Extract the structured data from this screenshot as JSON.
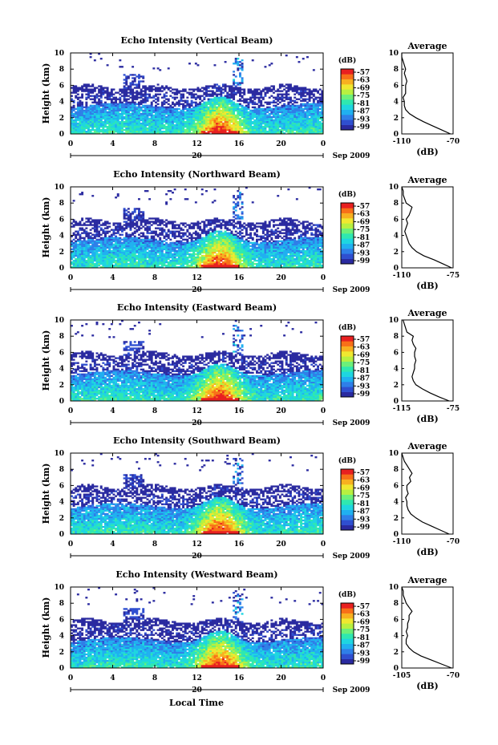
{
  "page": {
    "date_label": "Sep 2009",
    "xlabel": "Local Time"
  },
  "colormap": [
    "#2a2aa0",
    "#2f4fd0",
    "#2f7fe8",
    "#20b0f0",
    "#1ed6e0",
    "#2fe8b0",
    "#6cf07a",
    "#b8f040",
    "#f0e830",
    "#f8b020",
    "#f87018",
    "#e82020"
  ],
  "chart_data": [
    {
      "type": "heatmap",
      "title": "Echo Intensity (Vertical Beam)",
      "ylabel": "Height (km)",
      "x_ticks": [
        "0",
        "4",
        "8",
        "12",
        "16",
        "20",
        "0"
      ],
      "y_ticks": [
        "0",
        "2",
        "4",
        "6",
        "8",
        "10"
      ],
      "xlim": [
        0,
        24
      ],
      "ylim": [
        0,
        10
      ],
      "day_label": "20",
      "date_label": "Sep 2009",
      "colorbar": {
        "unit": "(dB)",
        "ticks": [
          "-57",
          "-63",
          "-69",
          "-75",
          "-81",
          "-87",
          "-93",
          "-99"
        ]
      },
      "profile": {
        "title": "Average",
        "xlabel": "(dB)",
        "x_ticks": [
          "-110",
          "-70"
        ],
        "xlim": [
          -110,
          -70
        ],
        "y_ticks": [
          "0",
          "2",
          "4",
          "6",
          "8",
          "10"
        ],
        "height": [
          0,
          0.5,
          1,
          1.5,
          2,
          2.5,
          3,
          3.5,
          4,
          4.5,
          5,
          5.5,
          6,
          6.5,
          7,
          7.5,
          8,
          8.5,
          9,
          9.5,
          10
        ],
        "values": [
          -72,
          -79,
          -86,
          -93,
          -99,
          -104,
          -107,
          -108,
          -108,
          -109,
          -107,
          -107,
          -107,
          -106,
          -107,
          -108,
          -107,
          -108,
          -109,
          -110,
          -110
        ]
      }
    },
    {
      "type": "heatmap",
      "title": "Echo Intensity (Northward Beam)",
      "ylabel": "Height (km)",
      "x_ticks": [
        "0",
        "4",
        "8",
        "12",
        "16",
        "20",
        "0"
      ],
      "y_ticks": [
        "0",
        "2",
        "4",
        "6",
        "8",
        "10"
      ],
      "xlim": [
        0,
        24
      ],
      "ylim": [
        0,
        10
      ],
      "day_label": "20",
      "date_label": "Sep 2009",
      "colorbar": {
        "unit": "(dB)",
        "ticks": [
          "-57",
          "-63",
          "-69",
          "-75",
          "-81",
          "-87",
          "-93",
          "-99"
        ]
      },
      "profile": {
        "title": "Average",
        "xlabel": "(dB)",
        "x_ticks": [
          "-110",
          "-75"
        ],
        "xlim": [
          -110,
          -75
        ],
        "y_ticks": [
          "0",
          "2",
          "4",
          "6",
          "8",
          "10"
        ],
        "height": [
          0,
          0.5,
          1,
          1.5,
          2,
          2.5,
          3,
          3.5,
          4,
          4.5,
          5,
          5.5,
          6,
          6.5,
          7,
          7.5,
          8,
          8.5,
          9,
          9.5,
          10
        ],
        "values": [
          -76,
          -82,
          -88,
          -95,
          -100,
          -103,
          -105,
          -106,
          -107,
          -108,
          -107,
          -106,
          -107,
          -105,
          -104,
          -103,
          -107,
          -108,
          -109,
          -109,
          -110
        ]
      }
    },
    {
      "type": "heatmap",
      "title": "Echo Intensity (Eastward Beam)",
      "ylabel": "Height (km)",
      "x_ticks": [
        "0",
        "4",
        "8",
        "12",
        "16",
        "20",
        "0"
      ],
      "y_ticks": [
        "0",
        "2",
        "4",
        "6",
        "8",
        "10"
      ],
      "xlim": [
        0,
        24
      ],
      "ylim": [
        0,
        10
      ],
      "day_label": "20",
      "date_label": "Sep 2009",
      "colorbar": {
        "unit": "(dB)",
        "ticks": [
          "-57",
          "-63",
          "-69",
          "-75",
          "-81",
          "-87",
          "-93",
          "-99"
        ]
      },
      "profile": {
        "title": "Average",
        "xlabel": "(dB)",
        "x_ticks": [
          "-115",
          "-75"
        ],
        "xlim": [
          -115,
          -75
        ],
        "y_ticks": [
          "0",
          "2",
          "4",
          "6",
          "8",
          "10"
        ],
        "height": [
          0,
          0.5,
          1,
          1.5,
          2,
          2.5,
          3,
          3.5,
          4,
          4.5,
          5,
          5.5,
          6,
          6.5,
          7,
          7.5,
          8,
          8.5,
          9,
          9.5,
          10
        ],
        "values": [
          -78,
          -86,
          -93,
          -99,
          -104,
          -106,
          -107,
          -106,
          -105,
          -105,
          -104,
          -105,
          -105,
          -104,
          -106,
          -107,
          -106,
          -111,
          -112,
          -113,
          -114
        ]
      }
    },
    {
      "type": "heatmap",
      "title": "Echo Intensity (Southward Beam)",
      "ylabel": "Height (km)",
      "x_ticks": [
        "0",
        "4",
        "8",
        "12",
        "16",
        "20",
        "0"
      ],
      "y_ticks": [
        "0",
        "2",
        "4",
        "6",
        "8",
        "10"
      ],
      "xlim": [
        0,
        24
      ],
      "ylim": [
        0,
        10
      ],
      "day_label": "20",
      "date_label": "Sep 2009",
      "colorbar": {
        "unit": "(dB)",
        "ticks": [
          "-57",
          "-63",
          "-69",
          "-75",
          "-81",
          "-87",
          "-93",
          "-99"
        ]
      },
      "profile": {
        "title": "Average",
        "xlabel": "(dB)",
        "x_ticks": [
          "-110",
          "-70"
        ],
        "xlim": [
          -110,
          -70
        ],
        "y_ticks": [
          "0",
          "2",
          "4",
          "6",
          "8",
          "10"
        ],
        "height": [
          0,
          0.5,
          1,
          1.5,
          2,
          2.5,
          3,
          3.5,
          4,
          4.5,
          5,
          5.5,
          6,
          6.5,
          7,
          7.5,
          8,
          8.5,
          9,
          9.5,
          10
        ],
        "values": [
          -73,
          -80,
          -87,
          -94,
          -99,
          -103,
          -105,
          -106,
          -106,
          -107,
          -105,
          -106,
          -106,
          -103,
          -104,
          -102,
          -104,
          -106,
          -108,
          -109,
          -110
        ]
      }
    },
    {
      "type": "heatmap",
      "title": "Echo Intensity (Westward Beam)",
      "ylabel": "Height (km)",
      "x_ticks": [
        "0",
        "4",
        "8",
        "12",
        "16",
        "20",
        "0"
      ],
      "y_ticks": [
        "0",
        "2",
        "4",
        "6",
        "8",
        "10"
      ],
      "xlim": [
        0,
        24
      ],
      "ylim": [
        0,
        10
      ],
      "day_label": "20",
      "date_label": "Sep 2009",
      "colorbar": {
        "unit": "(dB)",
        "ticks": [
          "-57",
          "-63",
          "-69",
          "-75",
          "-81",
          "-87",
          "-93",
          "-99"
        ]
      },
      "profile": {
        "title": "Average",
        "xlabel": "(dB)",
        "x_ticks": [
          "-105",
          "-70"
        ],
        "xlim": [
          -105,
          -70
        ],
        "y_ticks": [
          "0",
          "2",
          "4",
          "6",
          "8",
          "10"
        ],
        "height": [
          0,
          0.5,
          1,
          1.5,
          2,
          2.5,
          3,
          3.5,
          4,
          4.5,
          5,
          5.5,
          6,
          6.5,
          7,
          7.5,
          8,
          8.5,
          9,
          9.5,
          10
        ],
        "values": [
          -71,
          -78,
          -85,
          -92,
          -97,
          -100,
          -102,
          -102,
          -101,
          -102,
          -101,
          -101,
          -100,
          -100,
          -98,
          -100,
          -102,
          -103,
          -104,
          -104,
          -105
        ]
      }
    }
  ]
}
